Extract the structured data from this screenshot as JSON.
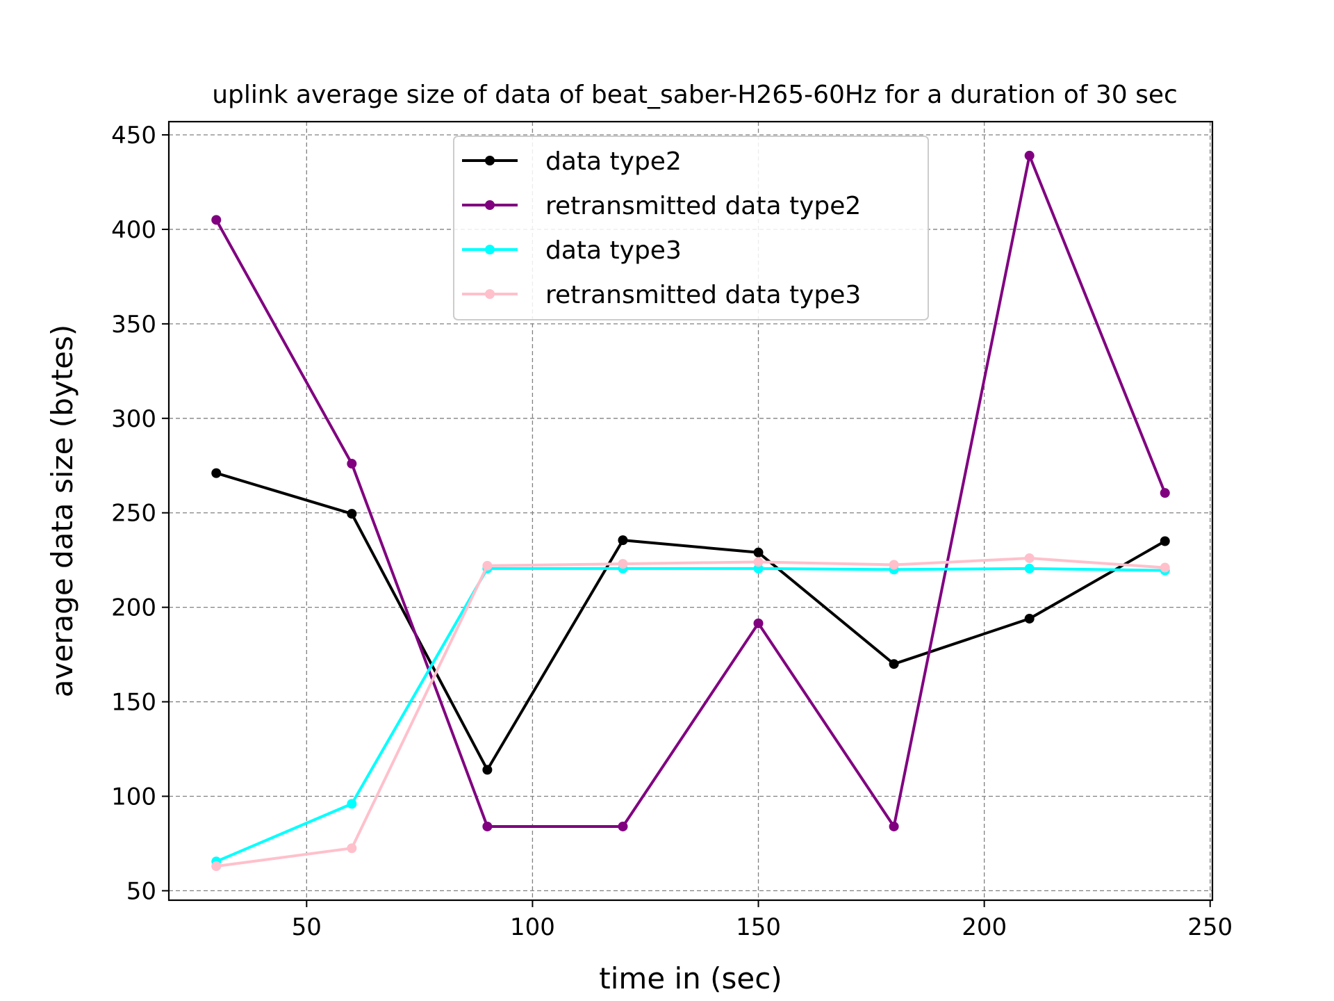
{
  "chart_data": {
    "type": "line",
    "title": "uplink average size of data of beat_saber-H265-60Hz for a duration of 30 sec",
    "xlabel": "time in (sec)",
    "ylabel": "average data size (bytes)",
    "xlim": [
      19.5,
      250.5
    ],
    "ylim": [
      45,
      457
    ],
    "xticks": [
      50,
      100,
      150,
      200,
      250
    ],
    "yticks": [
      50,
      100,
      150,
      200,
      250,
      300,
      350,
      400,
      450
    ],
    "grid": true,
    "legend_position": "top-center",
    "x": [
      30,
      60,
      90,
      120,
      150,
      180,
      210,
      240
    ],
    "series": [
      {
        "name": "data type2",
        "color": "#000000",
        "values": [
          271,
          249.5,
          114,
          235.5,
          229,
          170,
          194,
          235
        ]
      },
      {
        "name": "retransmitted data type2",
        "color": "#800080",
        "values": [
          405,
          276,
          84,
          84,
          191.5,
          84,
          439,
          260.5
        ]
      },
      {
        "name": "data type3",
        "color": "#00ffff",
        "values": [
          65.5,
          96,
          220.5,
          220.5,
          220.5,
          220,
          220.5,
          219.5
        ]
      },
      {
        "name": "retransmitted data type3",
        "color": "#ffc0cb",
        "values": [
          63,
          72.5,
          222,
          223,
          224,
          222.5,
          226,
          221
        ]
      }
    ]
  }
}
